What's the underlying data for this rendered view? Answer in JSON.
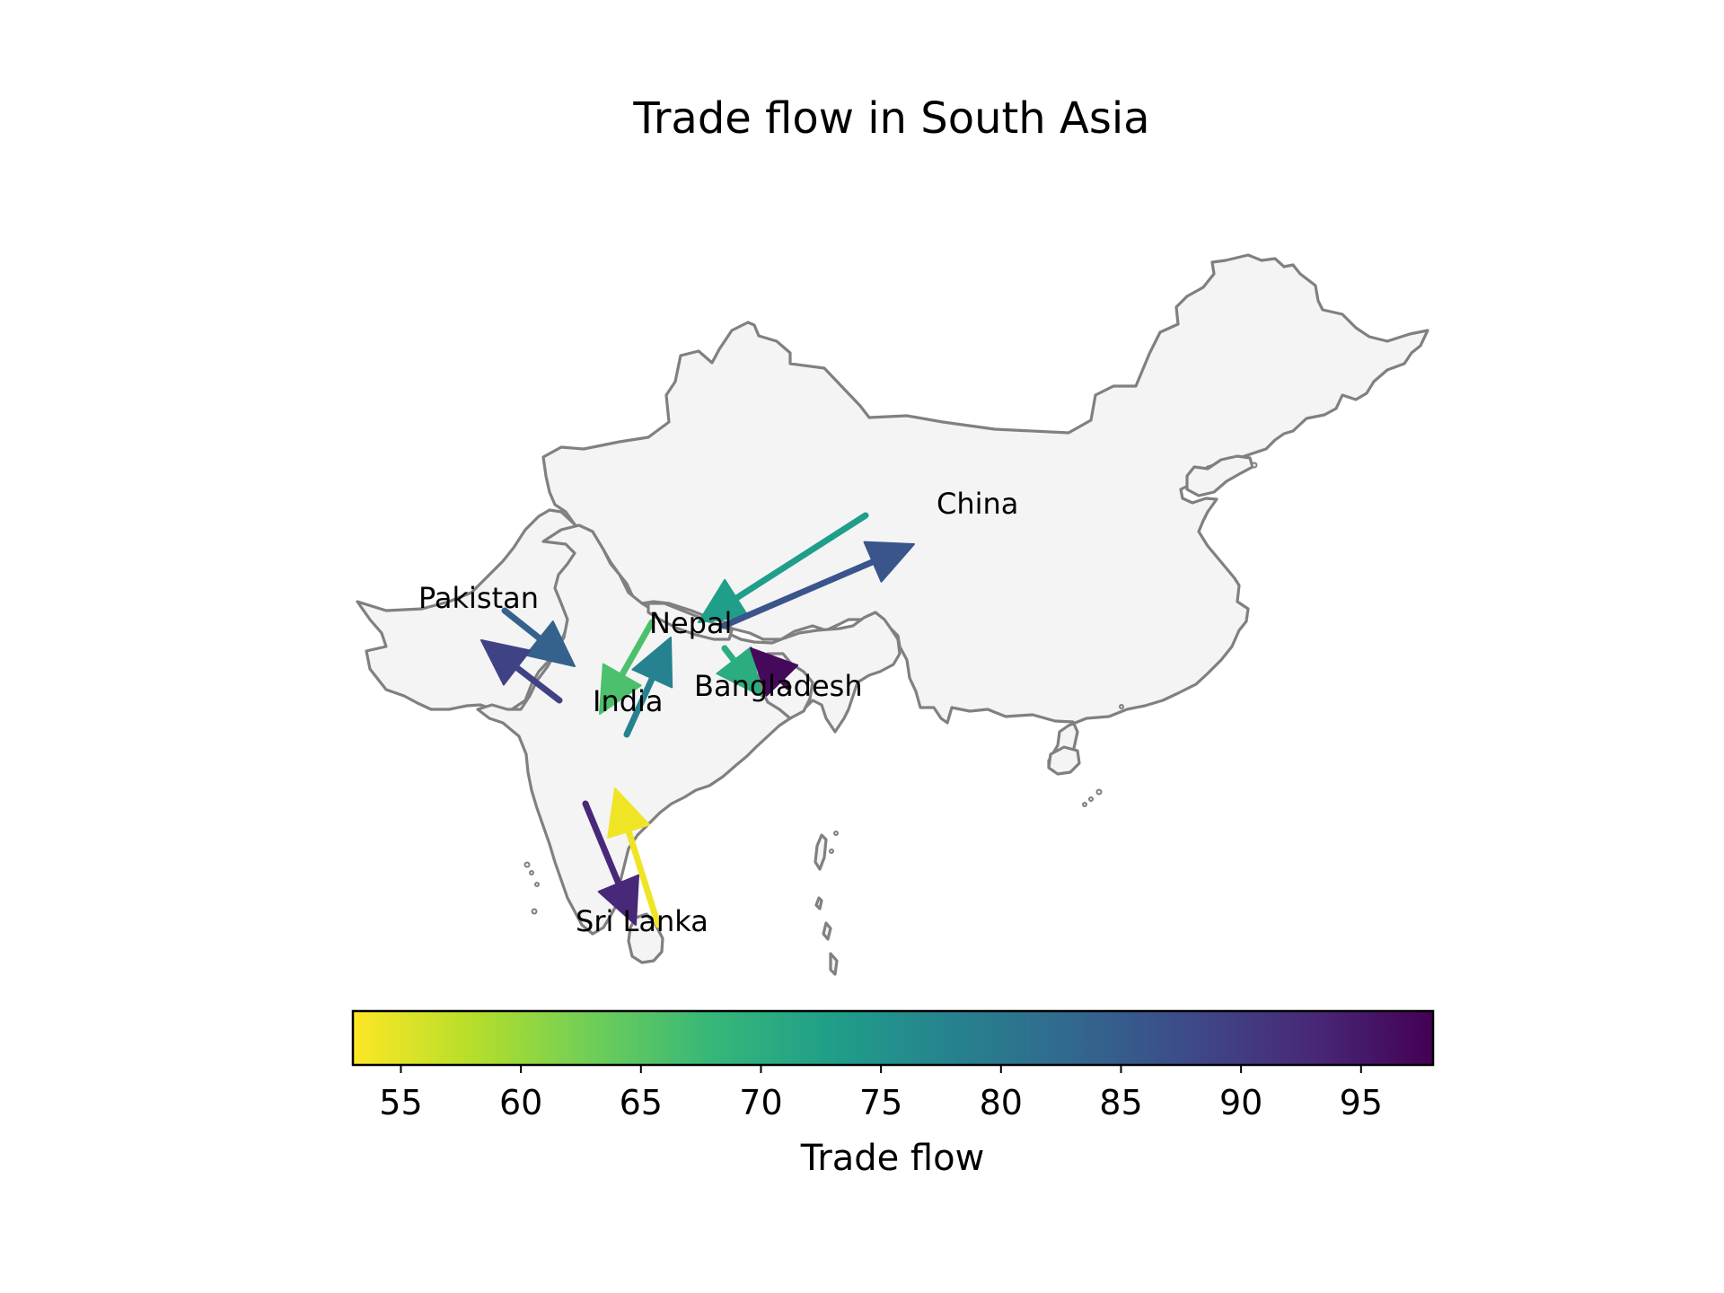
{
  "title": "Trade flow in South Asia",
  "countries": [
    {
      "name": "China",
      "key": "china"
    },
    {
      "name": "Pakistan",
      "key": "pakistan"
    },
    {
      "name": "Nepal",
      "key": "nepal"
    },
    {
      "name": "India",
      "key": "india"
    },
    {
      "name": "Bangladesh",
      "key": "bangladesh"
    },
    {
      "name": "Sri Lanka",
      "key": "srilanka"
    }
  ],
  "colorbar": {
    "label": "Trade flow",
    "colormap": "viridis (reversed)",
    "range": [
      53,
      98
    ],
    "ticks": [
      "55",
      "60",
      "65",
      "70",
      "75",
      "80",
      "85",
      "90",
      "95"
    ]
  },
  "chart_data": {
    "type": "flow-map",
    "title": "Trade flow in South Asia",
    "value_label": "Trade flow",
    "flows": [
      {
        "from": "Pakistan",
        "to": "India",
        "value": 84
      },
      {
        "from": "India",
        "to": "Pakistan",
        "value": 89
      },
      {
        "from": "Nepal",
        "to": "India",
        "value": 66
      },
      {
        "from": "India",
        "to": "Nepal",
        "value": 78
      },
      {
        "from": "China",
        "to": "Nepal",
        "value": 73
      },
      {
        "from": "Nepal",
        "to": "China",
        "value": 86
      },
      {
        "from": "Nepal",
        "to": "Bangladesh",
        "value": 70
      },
      {
        "from": "Bangladesh",
        "to": "Nepal",
        "value": 97
      },
      {
        "from": "India",
        "to": "Sri Lanka",
        "value": 93
      },
      {
        "from": "Sri Lanka",
        "to": "India",
        "value": 54
      }
    ]
  }
}
